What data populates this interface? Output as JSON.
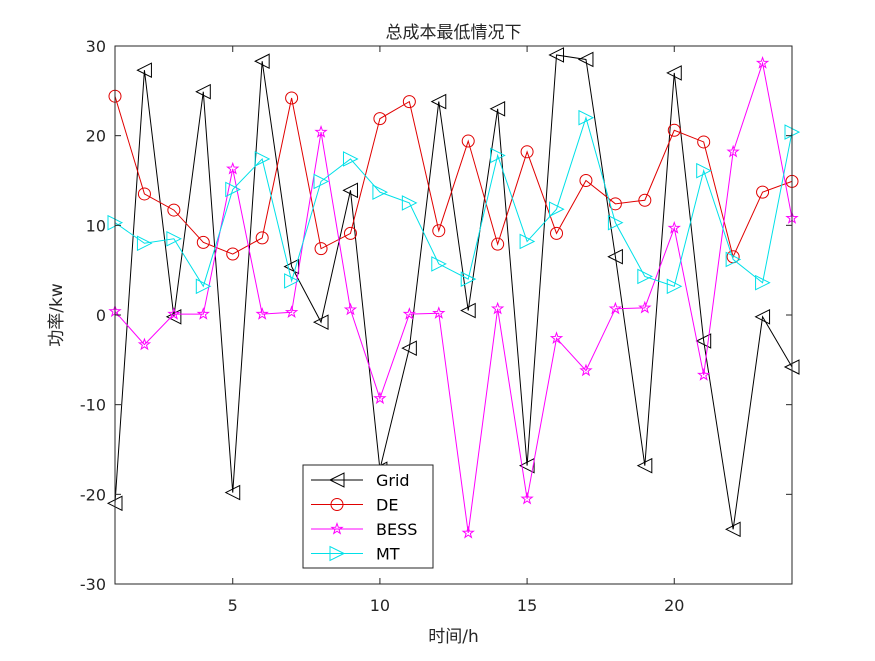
{
  "chart_data": {
    "type": "line",
    "title": "总成本最低情况下",
    "xlabel": "时间/h",
    "ylabel": "功率/kw",
    "xlim": [
      1,
      24
    ],
    "ylim": [
      -30,
      30
    ],
    "xticks": [
      5,
      10,
      15,
      20
    ],
    "yticks": [
      -30,
      -20,
      -10,
      0,
      10,
      20,
      30
    ],
    "grid": false,
    "legend_position": "bottom-center",
    "x": [
      1,
      2,
      3,
      4,
      5,
      6,
      7,
      8,
      9,
      10,
      11,
      12,
      13,
      14,
      15,
      16,
      17,
      18,
      19,
      20,
      21,
      22,
      23,
      24
    ],
    "series": [
      {
        "name": "Grid",
        "color": "#000000",
        "marker": "triangle-left",
        "values": [
          -21,
          27.3,
          -0.2,
          24.9,
          -19.8,
          28.3,
          5.4,
          -0.8,
          13.9,
          -17.2,
          -3.7,
          23.8,
          0.5,
          23,
          -16.8,
          29,
          28.5,
          6.5,
          -16.8,
          27,
          -2.9,
          -23.9,
          -0.2,
          -5.8
        ]
      },
      {
        "name": "DE",
        "color": "#e00000",
        "marker": "circle",
        "values": [
          24.4,
          13.5,
          11.7,
          8.1,
          6.8,
          8.6,
          24.2,
          7.4,
          9.1,
          21.9,
          23.8,
          9.4,
          19.4,
          7.9,
          18.2,
          9.1,
          15.0,
          12.4,
          12.8,
          20.6,
          19.3,
          6.5,
          13.7,
          14.9
        ]
      },
      {
        "name": "BESS",
        "color": "#ff00ff",
        "marker": "star",
        "values": [
          0.4,
          -3.3,
          0.1,
          0.1,
          16.3,
          0.1,
          0.3,
          20.4,
          0.6,
          -9.3,
          0.1,
          0.2,
          -24.3,
          0.7,
          -20.5,
          -2.6,
          -6.2,
          0.7,
          0.8,
          9.7,
          -6.7,
          18.2,
          28.1,
          10.8
        ]
      },
      {
        "name": "MT",
        "color": "#00e0e8",
        "marker": "triangle-right",
        "values": [
          10.3,
          8,
          8.5,
          3.2,
          14,
          17.4,
          3.8,
          14.9,
          17.4,
          13.7,
          12.5,
          5.7,
          4,
          17.8,
          8.2,
          11.8,
          22,
          10.3,
          4.3,
          3.2,
          16.1,
          6.2,
          3.6,
          20.4
        ]
      }
    ]
  }
}
